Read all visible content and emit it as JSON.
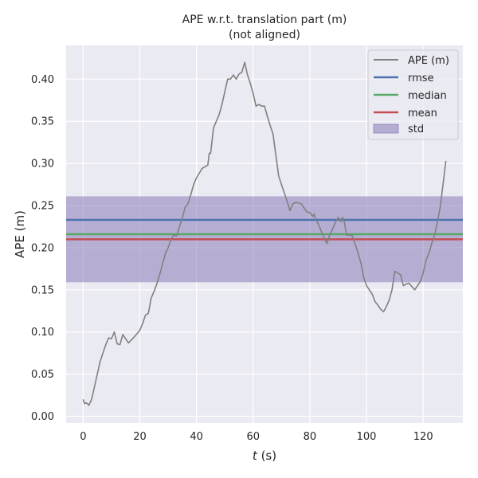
{
  "chart_data": {
    "type": "line",
    "title": "APE w.r.t. translation part (m)",
    "subtitle": "(not aligned)",
    "xlabel_var": "t",
    "xlabel_unit": " (s)",
    "ylabel": "APE (m)",
    "xlim": [
      -6,
      134
    ],
    "ylim": [
      -0.008,
      0.44
    ],
    "xticks": [
      0,
      20,
      40,
      60,
      80,
      100,
      120
    ],
    "yticks": [
      0.0,
      0.05,
      0.1,
      0.15,
      0.2,
      0.25,
      0.3,
      0.35,
      0.4
    ],
    "grid": true,
    "legend_position": "top-right",
    "series": [
      {
        "name": "APE (m)",
        "color": "#808080",
        "x": [
          0,
          0.5,
          1,
          1.5,
          2,
          3,
          4,
          5,
          6,
          7,
          8,
          9,
          10,
          11,
          12,
          13,
          14,
          16,
          18,
          20,
          21,
          22,
          23,
          24,
          25,
          26,
          27,
          28,
          29,
          30,
          31,
          32,
          33,
          34,
          35,
          36,
          37,
          38,
          39,
          40,
          42,
          43,
          44,
          44.5,
          45,
          46,
          47,
          48,
          49,
          50,
          51,
          52,
          53,
          54,
          55,
          56,
          57,
          58,
          59,
          60,
          61,
          62,
          63,
          64,
          65,
          66,
          67,
          68,
          69,
          70,
          71,
          72,
          73,
          74,
          75,
          76,
          77,
          78,
          79,
          80,
          81,
          81.5,
          82,
          83,
          84,
          85,
          86,
          87,
          88,
          89,
          90,
          91,
          91.5,
          92,
          93,
          94,
          95,
          96,
          97,
          98,
          99,
          100,
          101,
          102,
          103,
          104,
          105,
          106,
          107,
          108,
          109,
          110,
          111,
          112,
          113,
          114,
          115,
          116,
          117,
          118,
          119,
          120,
          121,
          122,
          123,
          124,
          125,
          126,
          127,
          128
        ],
        "values": [
          0.02,
          0.015,
          0.016,
          0.015,
          0.013,
          0.02,
          0.035,
          0.05,
          0.065,
          0.075,
          0.085,
          0.093,
          0.092,
          0.1,
          0.086,
          0.085,
          0.097,
          0.087,
          0.094,
          0.102,
          0.11,
          0.12,
          0.122,
          0.14,
          0.148,
          0.157,
          0.168,
          0.18,
          0.193,
          0.2,
          0.21,
          0.215,
          0.214,
          0.225,
          0.235,
          0.248,
          0.252,
          0.263,
          0.275,
          0.283,
          0.294,
          0.296,
          0.298,
          0.312,
          0.312,
          0.342,
          0.35,
          0.358,
          0.37,
          0.385,
          0.4,
          0.4,
          0.405,
          0.4,
          0.406,
          0.408,
          0.42,
          0.405,
          0.395,
          0.383,
          0.368,
          0.37,
          0.368,
          0.368,
          0.356,
          0.345,
          0.335,
          0.31,
          0.285,
          0.275,
          0.265,
          0.255,
          0.244,
          0.252,
          0.254,
          0.253,
          0.252,
          0.247,
          0.242,
          0.242,
          0.237,
          0.24,
          0.234,
          0.228,
          0.22,
          0.212,
          0.205,
          0.215,
          0.222,
          0.23,
          0.236,
          0.231,
          0.236,
          0.233,
          0.215,
          0.215,
          0.214,
          0.204,
          0.194,
          0.182,
          0.165,
          0.155,
          0.15,
          0.145,
          0.136,
          0.132,
          0.127,
          0.124,
          0.13,
          0.138,
          0.15,
          0.172,
          0.17,
          0.168,
          0.155,
          0.157,
          0.158,
          0.154,
          0.15,
          0.155,
          0.16,
          0.17,
          0.185,
          0.193,
          0.205,
          0.215,
          0.23,
          0.248,
          0.275,
          0.303
        ]
      },
      {
        "name": "rmse",
        "color": "#4c72b0",
        "value": 0.233
      },
      {
        "name": "median",
        "color": "#55a868",
        "value": 0.216
      },
      {
        "name": "mean",
        "color": "#c44e52",
        "value": 0.21
      }
    ],
    "std_band": {
      "name": "std",
      "color": "#8172b2",
      "low": 0.159,
      "high": 0.261
    }
  }
}
